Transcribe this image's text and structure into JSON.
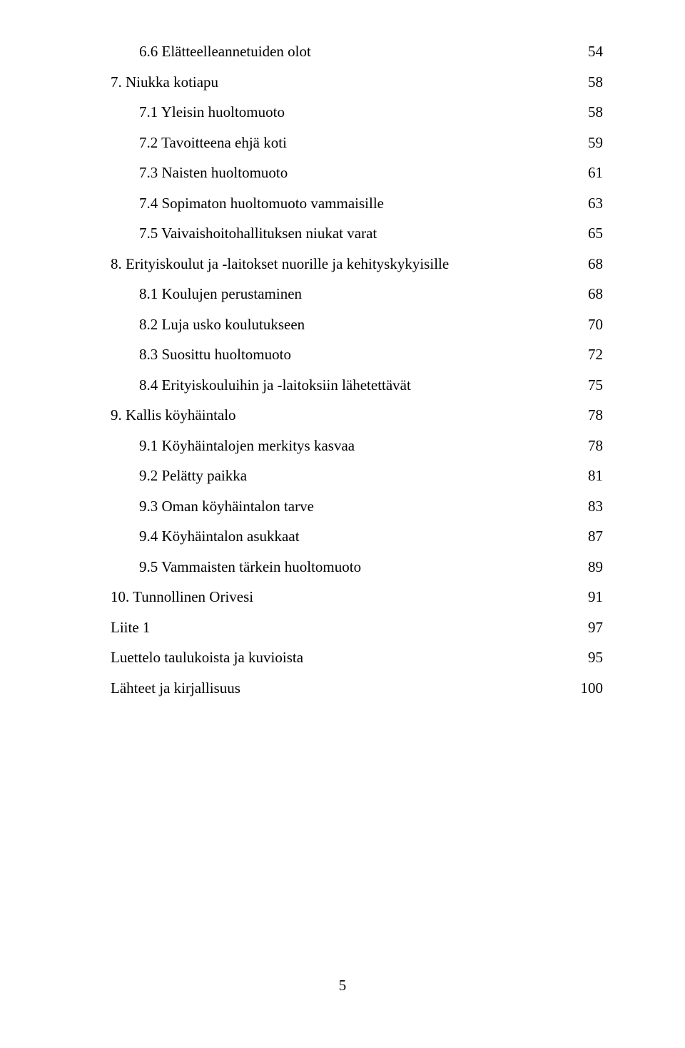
{
  "toc": [
    {
      "indent": 2,
      "label": "6.6 Elätteelleannetuiden olot",
      "page": "54"
    },
    {
      "indent": 1,
      "label": "7. Niukka kotiapu",
      "page": "58"
    },
    {
      "indent": 2,
      "label": "7.1 Yleisin huoltomuoto",
      "page": "58"
    },
    {
      "indent": 2,
      "label": "7.2 Tavoitteena ehjä koti",
      "page": "59"
    },
    {
      "indent": 2,
      "label": "7.3 Naisten huoltomuoto",
      "page": "61"
    },
    {
      "indent": 2,
      "label": "7.4 Sopimaton huoltomuoto vammaisille",
      "page": "63"
    },
    {
      "indent": 2,
      "label": "7.5 Vaivaishoitohallituksen niukat varat",
      "page": "65"
    },
    {
      "indent": 1,
      "label": "8. Erityiskoulut ja -laitokset nuorille ja kehityskykyisille",
      "page": "68"
    },
    {
      "indent": 2,
      "label": "8.1 Koulujen perustaminen",
      "page": "68"
    },
    {
      "indent": 2,
      "label": "8.2 Luja usko koulutukseen",
      "page": "70"
    },
    {
      "indent": 2,
      "label": "8.3 Suosittu huoltomuoto",
      "page": "72"
    },
    {
      "indent": 2,
      "label": "8.4 Erityiskouluihin ja -laitoksiin lähetettävät",
      "page": "75"
    },
    {
      "indent": 1,
      "label": "9. Kallis köyhäintalo",
      "page": "78"
    },
    {
      "indent": 2,
      "label": "9.1 Köyhäintalojen merkitys kasvaa",
      "page": "78"
    },
    {
      "indent": 2,
      "label": "9.2 Pelätty paikka",
      "page": "81"
    },
    {
      "indent": 2,
      "label": "9.3 Oman köyhäintalon tarve",
      "page": "83"
    },
    {
      "indent": 2,
      "label": "9.4 Köyhäintalon asukkaat",
      "page": "87"
    },
    {
      "indent": 2,
      "label": "9.5 Vammaisten tärkein huoltomuoto",
      "page": "89"
    },
    {
      "indent": 1,
      "label": "10. Tunnollinen Orivesi",
      "page": "91"
    },
    {
      "indent": 1,
      "label": "Liite 1",
      "page": "97"
    },
    {
      "indent": 1,
      "label": "Luettelo taulukoista ja kuvioista",
      "page": "95"
    },
    {
      "indent": 1,
      "label": "Lähteet ja kirjallisuus",
      "page": "100"
    }
  ],
  "footer_page_number": "5",
  "colors": {
    "background": "#ffffff",
    "text": "#000000"
  },
  "typography": {
    "font_family": "Times New Roman",
    "font_size_pt": 16
  }
}
